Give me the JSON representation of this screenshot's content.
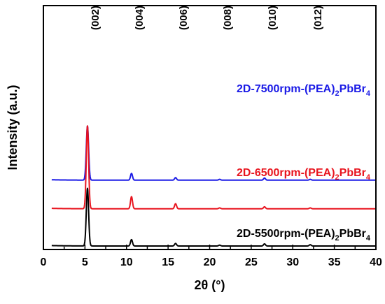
{
  "chart_data": {
    "type": "line",
    "xlabel": "2θ (°)",
    "ylabel": "Intensity (a.u.)",
    "xlim": [
      0,
      40
    ],
    "x_ticks": [
      0,
      5,
      10,
      15,
      20,
      25,
      30,
      35,
      40
    ],
    "x_tick_labels": [
      "0",
      "5",
      "10",
      "15",
      "20",
      "25",
      "30",
      "35",
      "40"
    ],
    "grid": false,
    "peak_labels": [
      {
        "text": "(002)",
        "x": 5.3
      },
      {
        "text": "(004)",
        "x": 10.6
      },
      {
        "text": "(006)",
        "x": 15.9
      },
      {
        "text": "(008)",
        "x": 21.2
      },
      {
        "text": "(010)",
        "x": 26.6
      },
      {
        "text": "(012)",
        "x": 32.1
      }
    ],
    "peak_positions": [
      5.3,
      10.6,
      15.9,
      21.2,
      26.6,
      32.1
    ],
    "series": [
      {
        "name": "2D-7500rpm-(PEA)2PbBr4",
        "label_main": "2D-7500rpm-(PEA)",
        "label_sub1": "2",
        "label_mid": "PbBr",
        "label_sub2": "4",
        "color": "#1a1ae6",
        "baseline": 0.92,
        "peak_heights": [
          2.55,
          0.32,
          0.12,
          0.04,
          0.1,
          0.04
        ]
      },
      {
        "name": "2D-6500rpm-(PEA)2PbBr4",
        "label_main": "2D-6500rpm-(PEA)",
        "label_sub1": "2",
        "label_mid": "PbBr",
        "label_sub2": "4",
        "color": "#e8141e",
        "baseline": 0.52,
        "peak_heights": [
          3.75,
          0.55,
          0.23,
          0.04,
          0.09,
          0.04
        ]
      },
      {
        "name": "2D-5500rpm-(PEA)2PbBr4",
        "label_main": "2D-5500rpm-(PEA)",
        "label_sub1": "2",
        "label_mid": "PbBr",
        "label_sub2": "4",
        "color": "#000000",
        "baseline": 0.0,
        "peak_heights": [
          2.7,
          0.3,
          0.12,
          0.04,
          0.1,
          0.06
        ]
      }
    ]
  }
}
